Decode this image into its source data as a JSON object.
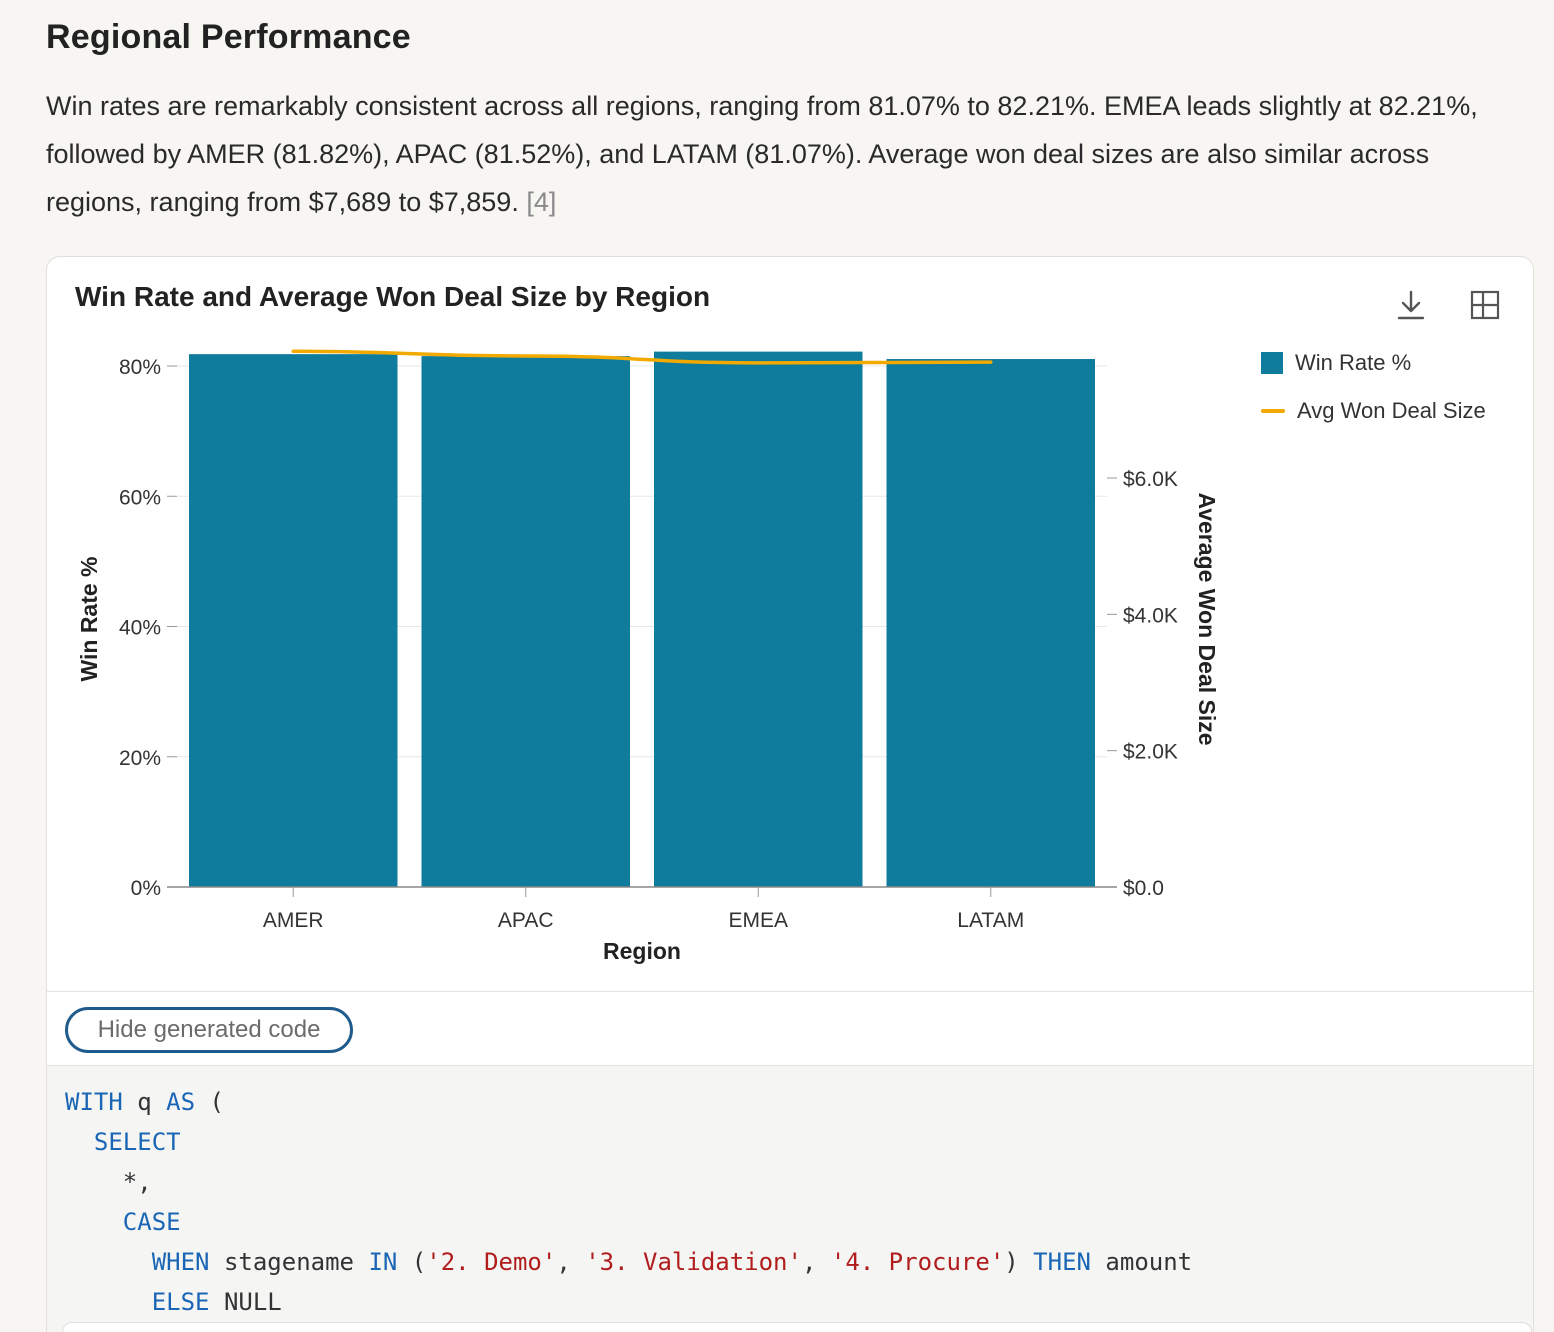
{
  "section": {
    "heading": "Regional Performance",
    "paragraph": "Win rates are remarkably consistent across all regions, ranging from 81.07% to 82.21%. EMEA leads slightly at 82.21%, followed by AMER (81.82%), APAC (81.52%), and LATAM (81.07%). Average won deal sizes are also similar across regions, ranging from $7,689 to $7,859.",
    "citation": "[4]"
  },
  "card": {
    "download_icon": "download-icon",
    "layout_icon": "layout-grid-icon",
    "hide_code_label": "Hide generated code"
  },
  "colors": {
    "bar": "#0f7b9d",
    "line": "#f2a900"
  },
  "chart_data": {
    "type": "bar",
    "title": "Win Rate and Average Won Deal Size by Region",
    "xlabel": "Region",
    "ylabel": "Win Rate %",
    "y2label": "Average Won Deal Size",
    "categories": [
      "AMER",
      "APAC",
      "EMEA",
      "LATAM"
    ],
    "series": [
      {
        "name": "Win Rate %",
        "type": "bar",
        "axis": "left",
        "values": [
          81.82,
          81.52,
          82.21,
          81.07
        ]
      },
      {
        "name": "Avg Won Deal Size",
        "type": "line",
        "axis": "right",
        "values": [
          7859,
          7790,
          7689,
          7700
        ]
      }
    ],
    "ylim": [
      0,
      80
    ],
    "y_ticks": [
      "0%",
      "20%",
      "40%",
      "60%",
      "80%"
    ],
    "y2lim": [
      0,
      6000
    ],
    "y2_ticks": [
      "$0.0",
      "$2.0K",
      "$4.0K",
      "$6.0K"
    ],
    "legend": "right",
    "grid": true
  },
  "code": {
    "lines": [
      [
        {
          "t": "WITH",
          "c": "kw"
        },
        {
          "t": " q "
        },
        {
          "t": "AS",
          "c": "kw"
        },
        {
          "t": " ("
        }
      ],
      [
        {
          "t": "  "
        },
        {
          "t": "SELECT",
          "c": "kw"
        }
      ],
      [
        {
          "t": "    *,"
        }
      ],
      [
        {
          "t": "    "
        },
        {
          "t": "CASE",
          "c": "kw"
        }
      ],
      [
        {
          "t": "      "
        },
        {
          "t": "WHEN",
          "c": "kw"
        },
        {
          "t": " stagename "
        },
        {
          "t": "IN",
          "c": "kw"
        },
        {
          "t": " ("
        },
        {
          "t": "'2. Demo'",
          "c": "str"
        },
        {
          "t": ", "
        },
        {
          "t": "'3. Validation'",
          "c": "str"
        },
        {
          "t": ", "
        },
        {
          "t": "'4. Procure'",
          "c": "str"
        },
        {
          "t": ") "
        },
        {
          "t": "THEN",
          "c": "kw"
        },
        {
          "t": " amount"
        }
      ],
      [
        {
          "t": "      "
        },
        {
          "t": "ELSE",
          "c": "kw"
        },
        {
          "t": " NULL"
        }
      ]
    ]
  }
}
